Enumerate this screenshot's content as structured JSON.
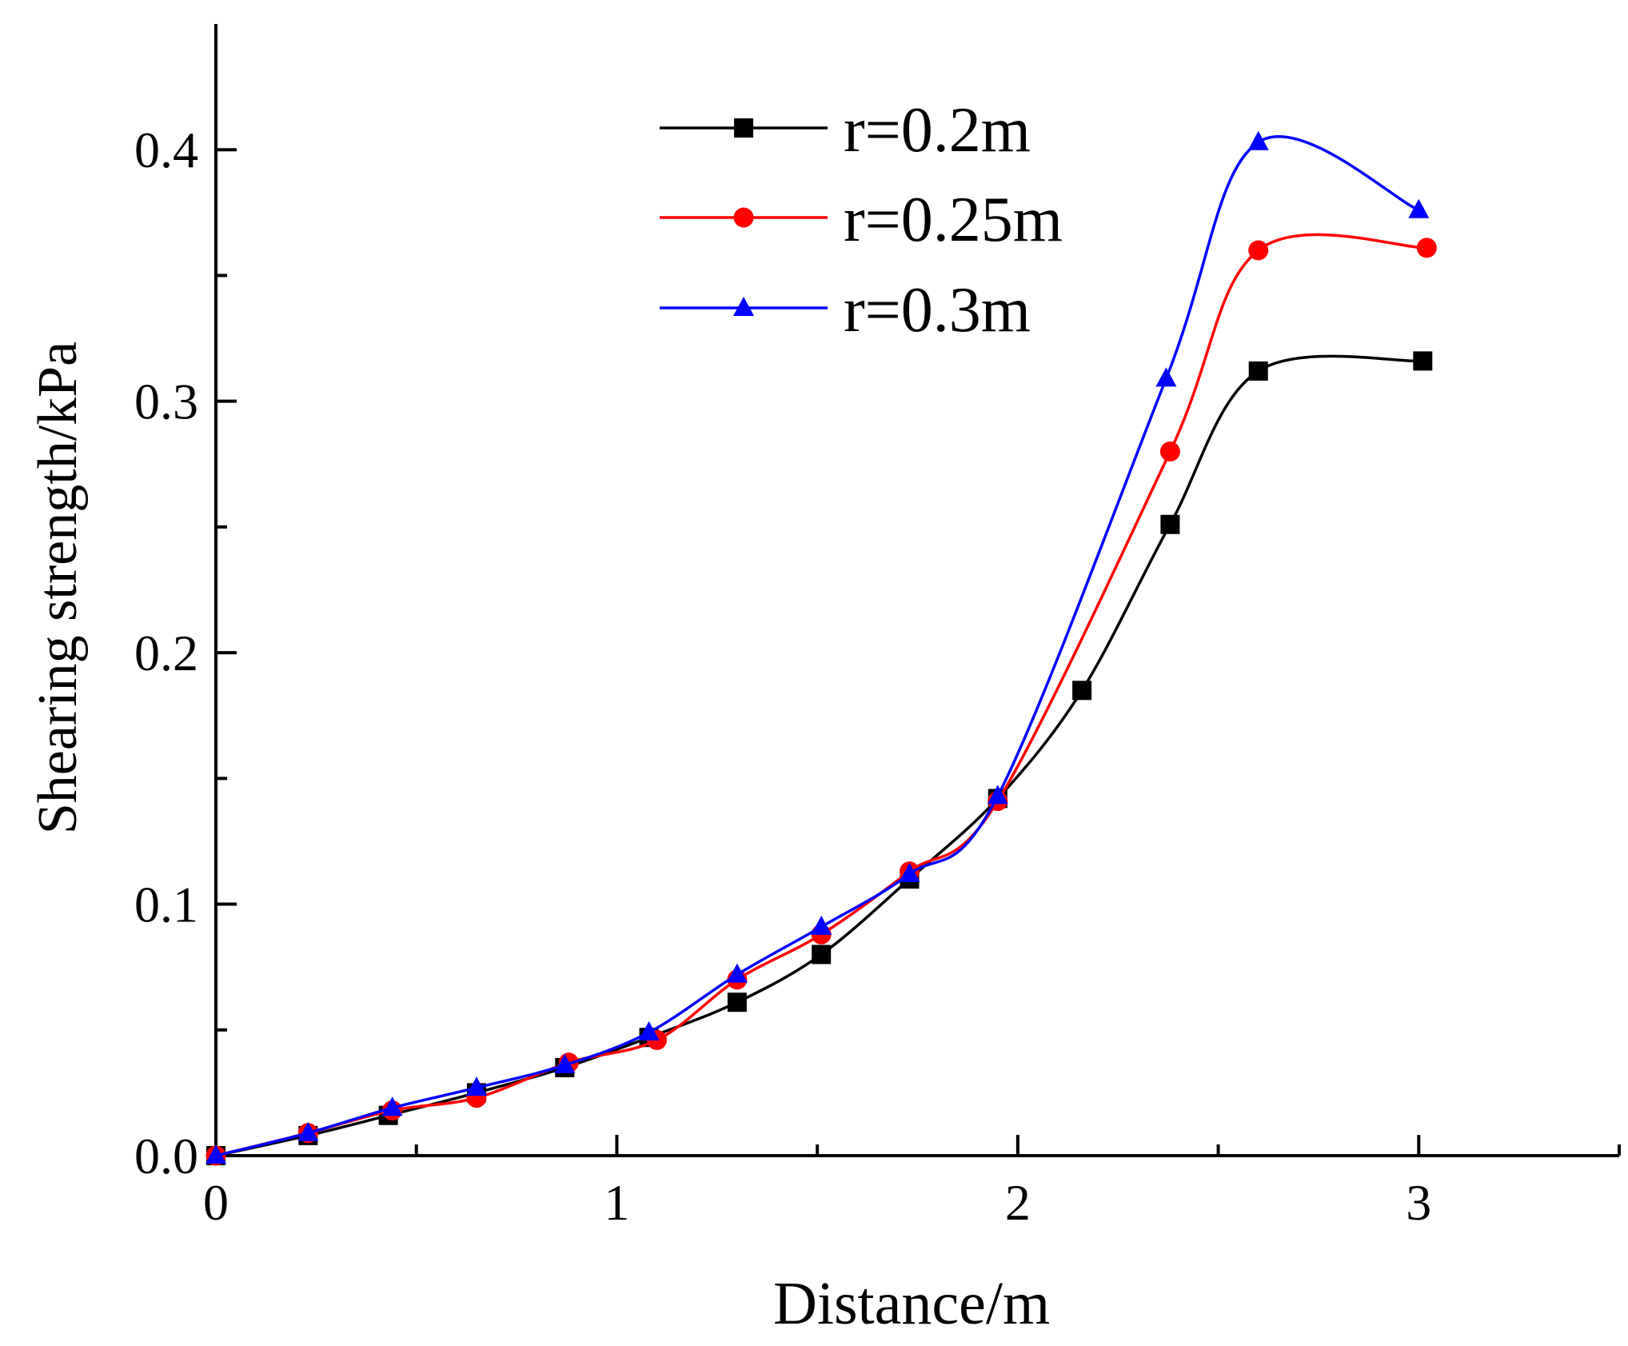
{
  "chart_data": {
    "type": "line",
    "title": "",
    "xlabel": "Distance/m",
    "ylabel": "Shearing strength/kPa",
    "xlim": [
      0,
      3.5
    ],
    "ylim": [
      0,
      0.45
    ],
    "x_ticks": [
      0,
      1,
      2,
      3
    ],
    "x_tick_labels": [
      "0",
      "1",
      "2",
      "3"
    ],
    "x_minor_ticks": [
      0.5,
      1.5,
      2.5,
      3.5
    ],
    "y_ticks": [
      0,
      0.1,
      0.2,
      0.3,
      0.4
    ],
    "y_tick_labels": [
      "0.0",
      "0.1",
      "0.2",
      "0.3",
      "0.4"
    ],
    "y_minor_ticks": [
      0.05,
      0.15,
      0.25,
      0.35
    ],
    "grid": false,
    "legend_position": "top-center",
    "smooth": true,
    "series": [
      {
        "name": "r=0.2m",
        "color": "#000000",
        "marker": "square",
        "x": [
          0.0,
          0.23,
          0.43,
          0.65,
          0.87,
          1.08,
          1.3,
          1.51,
          1.73,
          1.95,
          2.16,
          2.38,
          2.6,
          3.01
        ],
        "y": [
          0.0,
          0.008,
          0.016,
          0.025,
          0.035,
          0.047,
          0.061,
          0.08,
          0.11,
          0.142,
          0.185,
          0.251,
          0.312,
          0.316
        ]
      },
      {
        "name": "r=0.25m",
        "color": "#ff0000",
        "marker": "circle",
        "x": [
          0.0,
          0.23,
          0.44,
          0.65,
          0.88,
          1.1,
          1.3,
          1.51,
          1.73,
          1.95,
          2.38,
          2.6,
          3.02
        ],
        "y": [
          0.0,
          0.009,
          0.018,
          0.023,
          0.037,
          0.046,
          0.07,
          0.088,
          0.113,
          0.141,
          0.28,
          0.36,
          0.361
        ]
      },
      {
        "name": "r=0.3m",
        "color": "#0000ff",
        "marker": "triangle",
        "x": [
          0.0,
          0.23,
          0.44,
          0.65,
          0.87,
          1.08,
          1.3,
          1.51,
          1.73,
          1.95,
          2.37,
          2.6,
          3.0
        ],
        "y": [
          0.0,
          0.009,
          0.019,
          0.027,
          0.036,
          0.049,
          0.072,
          0.091,
          0.112,
          0.143,
          0.309,
          0.403,
          0.376
        ]
      }
    ]
  }
}
